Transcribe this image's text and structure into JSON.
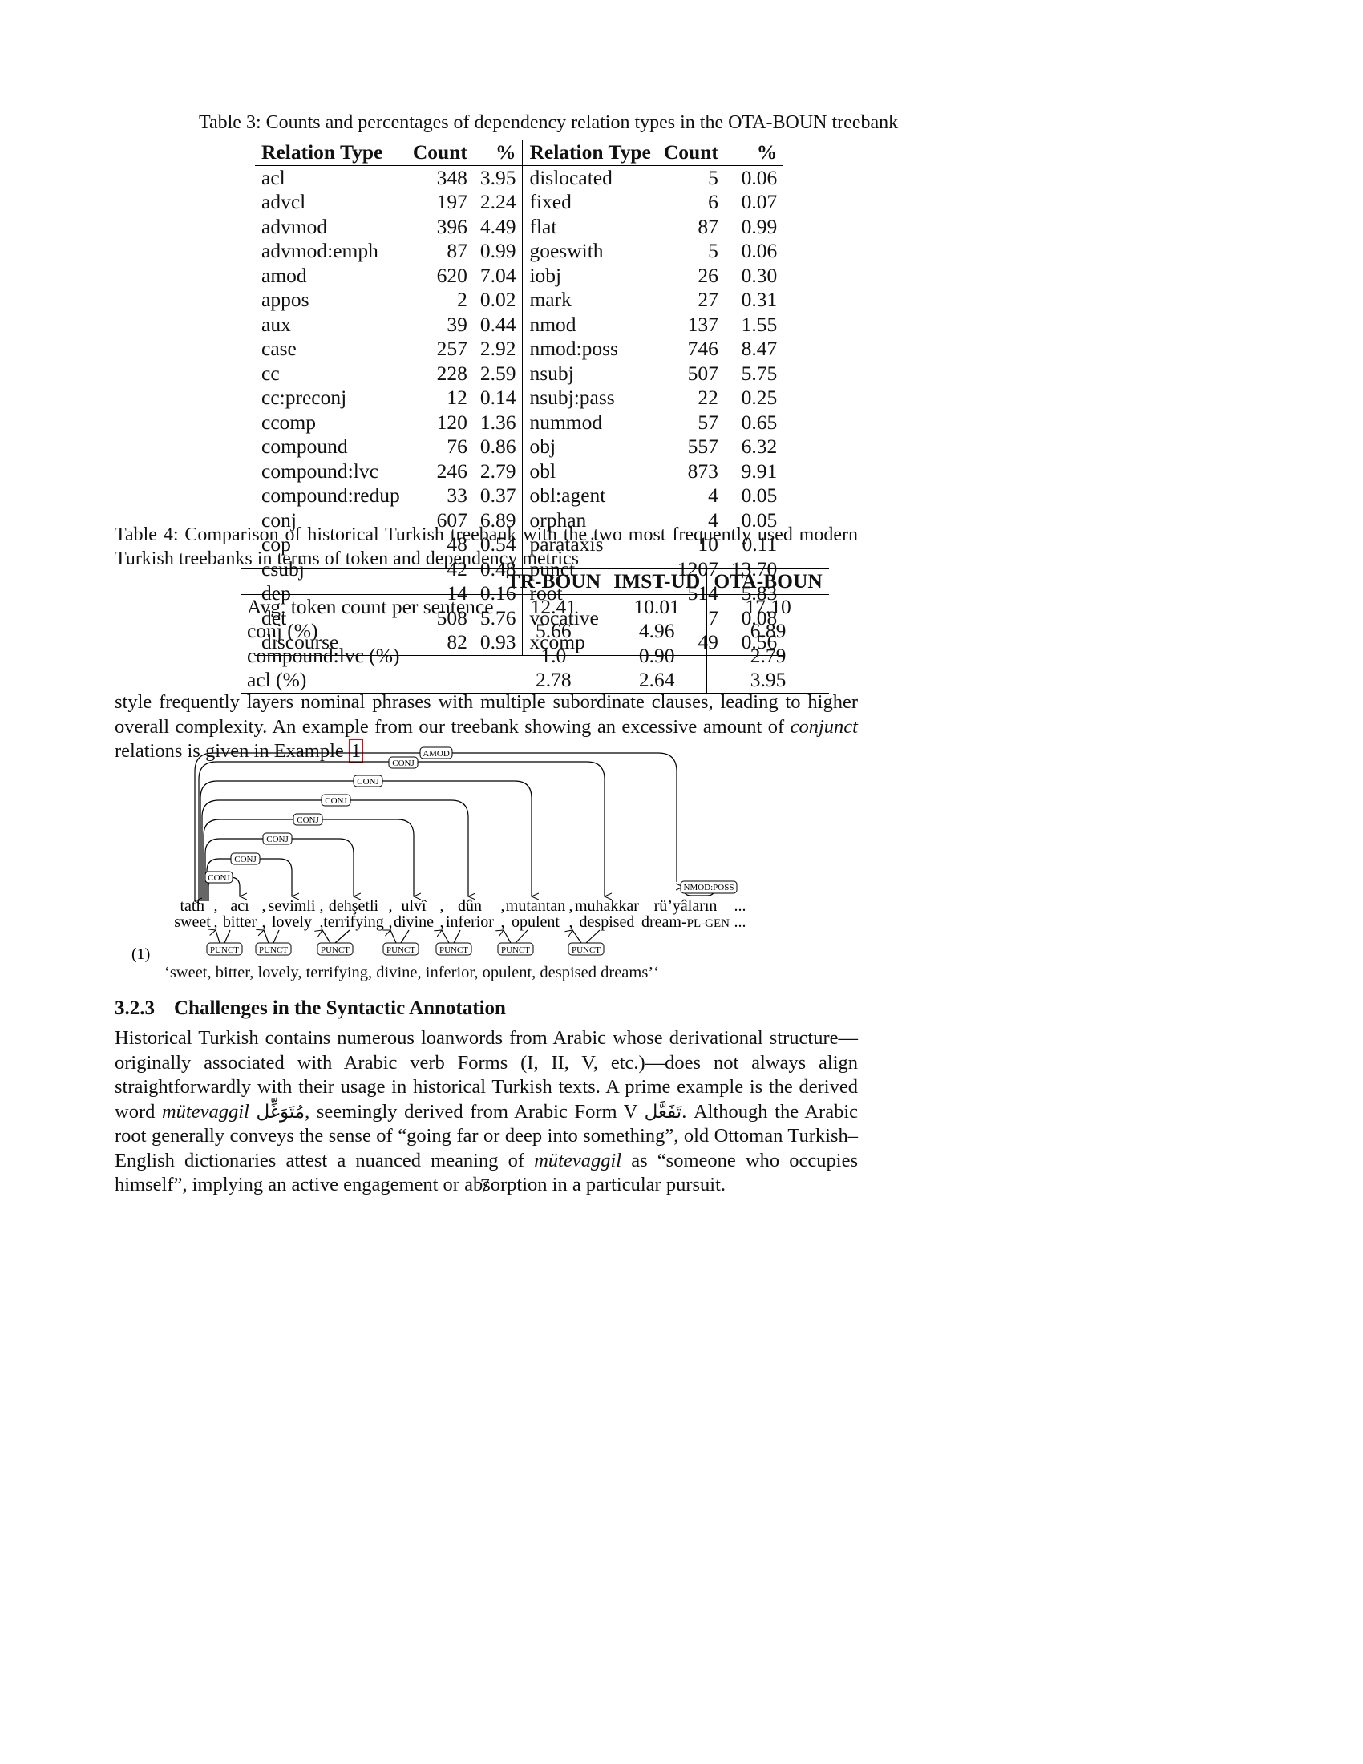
{
  "table3": {
    "caption": "Table 3: Counts and percentages of dependency relation types in the OTA-BOUN treebank",
    "headers": [
      "Relation Type",
      "Count",
      "%",
      "Relation Type",
      "Count",
      "%"
    ],
    "rows": [
      [
        "acl",
        "348",
        "3.95",
        "dislocated",
        "5",
        "0.06"
      ],
      [
        "advcl",
        "197",
        "2.24",
        "fixed",
        "6",
        "0.07"
      ],
      [
        "advmod",
        "396",
        "4.49",
        "flat",
        "87",
        "0.99"
      ],
      [
        "advmod:emph",
        "87",
        "0.99",
        "goeswith",
        "5",
        "0.06"
      ],
      [
        "amod",
        "620",
        "7.04",
        "iobj",
        "26",
        "0.30"
      ],
      [
        "appos",
        "2",
        "0.02",
        "mark",
        "27",
        "0.31"
      ],
      [
        "aux",
        "39",
        "0.44",
        "nmod",
        "137",
        "1.55"
      ],
      [
        "case",
        "257",
        "2.92",
        "nmod:poss",
        "746",
        "8.47"
      ],
      [
        "cc",
        "228",
        "2.59",
        "nsubj",
        "507",
        "5.75"
      ],
      [
        "cc:preconj",
        "12",
        "0.14",
        "nsubj:pass",
        "22",
        "0.25"
      ],
      [
        "ccomp",
        "120",
        "1.36",
        "nummod",
        "57",
        "0.65"
      ],
      [
        "compound",
        "76",
        "0.86",
        "obj",
        "557",
        "6.32"
      ],
      [
        "compound:lvc",
        "246",
        "2.79",
        "obl",
        "873",
        "9.91"
      ],
      [
        "compound:redup",
        "33",
        "0.37",
        "obl:agent",
        "4",
        "0.05"
      ],
      [
        "conj",
        "607",
        "6.89",
        "orphan",
        "4",
        "0.05"
      ],
      [
        "cop",
        "48",
        "0.54",
        "parataxis",
        "10",
        "0.11"
      ],
      [
        "csubj",
        "42",
        "0.48",
        "punct",
        "1207",
        "13.70"
      ],
      [
        "dep",
        "14",
        "0.16",
        "root",
        "514",
        "5.83"
      ],
      [
        "det",
        "508",
        "5.76",
        "vocative",
        "7",
        "0.08"
      ],
      [
        "discourse",
        "82",
        "0.93",
        "xcomp",
        "49",
        "0.56"
      ]
    ]
  },
  "table4": {
    "caption": "Table 4: Comparison of historical Turkish treebank with the two most frequently used modern Turkish treebanks in terms of token and dependency metrics",
    "headers": [
      "",
      "TR-BOUN",
      "IMST-UD",
      "OTA-BOUN"
    ],
    "rows": [
      [
        "Avg. token count per sentence",
        "12.41",
        "10.01",
        "17.10"
      ],
      [
        "conj (%)",
        "5.66",
        "4.96",
        "6.89"
      ],
      [
        "compound:lvc (%)",
        "1.0",
        "0.90",
        "2.79"
      ],
      [
        "acl (%)",
        "2.78",
        "2.64",
        "3.95"
      ]
    ]
  },
  "paragraph1": {
    "part1": "style frequently layers nominal phrases with multiple subordinate clauses, leading to higher overall complexity. An example from our treebank showing an excessive amount of ",
    "italic": "conjunct",
    "part2": " relations is given in Example ",
    "ref": "1"
  },
  "example": {
    "number": "(1)",
    "words": [
      "tatlı",
      ",",
      "acı",
      ",",
      "sevimli",
      ",",
      "dehşetli",
      ",",
      "ulvî",
      ",",
      "dûn",
      ",",
      "mutantan",
      ",",
      "muhakkar",
      "rü’yâların",
      "..."
    ],
    "gloss": [
      "sweet",
      ",",
      "bitter",
      ",",
      "lovely",
      ",",
      "terrifying",
      ",",
      "divine",
      ",",
      "inferior",
      ",",
      "opulent",
      ",",
      "despised",
      "dream-",
      "..."
    ],
    "gloss_smallcaps": "PL-GEN",
    "labels": {
      "amod": "AMOD",
      "conj": "CONJ",
      "nmod_poss": "NMOD:POSS",
      "punct": "PUNCT"
    },
    "translation": "‘sweet, bitter, lovely, terrifying, divine, inferior, opulent, despised dreams’‘"
  },
  "section": {
    "number": "3.2.3",
    "title": "Challenges in the Syntactic Annotation"
  },
  "paragraph2": {
    "s1": "Historical Turkish contains numerous loanwords from Arabic whose derivational structure—originally associated with Arabic verb Forms (I, II, V, etc.)—does not always align straightforwardly with their usage in historical Turkish texts. A prime example is the derived word ",
    "italic1": "mütevaggil",
    "arabic1": "مُتَوَغِّل",
    "s2": ", seemingly derived from Arabic Form V ",
    "arabic2": "تَفَعَّل",
    "s3": ". Although the Arabic root generally conveys the sense of “going far or deep into something”, old Ottoman Turkish–English dictionaries attest a nuanced meaning of ",
    "italic2": "mütevaggil",
    "s4": " as “someone who occupies himself”, implying an active engagement or absorption in a particular pursuit."
  },
  "page_number": "7"
}
